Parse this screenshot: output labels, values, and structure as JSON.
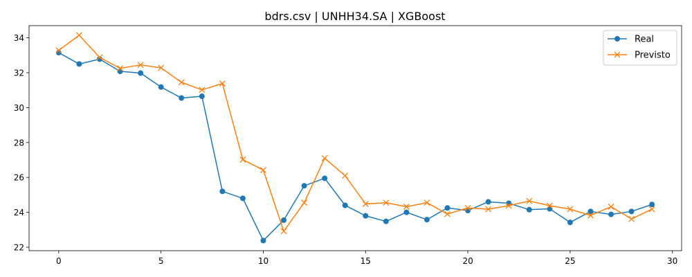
{
  "chart_data": {
    "type": "line",
    "title": "bdrs.csv | UNHH34.SA | XGBoost",
    "xlabel": "",
    "ylabel": "",
    "xlim": [
      -1.45,
      30.45
    ],
    "ylim": [
      21.8,
      34.7
    ],
    "xticks": [
      0,
      5,
      10,
      15,
      20,
      25,
      30
    ],
    "yticks": [
      22,
      24,
      26,
      28,
      30,
      32,
      34
    ],
    "grid": false,
    "legend_position": "top-right",
    "x": [
      0,
      1,
      2,
      3,
      4,
      5,
      6,
      7,
      8,
      9,
      10,
      11,
      12,
      13,
      14,
      15,
      16,
      17,
      18,
      19,
      20,
      21,
      22,
      23,
      24,
      25,
      26,
      27,
      28,
      29
    ],
    "series": [
      {
        "name": "Real",
        "color": "#1f77b4",
        "marker": "circle",
        "values": [
          33.15,
          32.5,
          32.78,
          32.08,
          31.98,
          31.18,
          30.55,
          30.65,
          25.2,
          24.8,
          22.38,
          23.55,
          25.52,
          25.95,
          24.4,
          23.8,
          23.48,
          24.0,
          23.58,
          24.25,
          24.1,
          24.6,
          24.52,
          24.15,
          24.2,
          23.42,
          24.05,
          23.88,
          24.05,
          24.45
        ]
      },
      {
        "name": "Previsto",
        "color": "#ff7f0e",
        "marker": "x",
        "values": [
          33.28,
          34.15,
          32.88,
          32.25,
          32.45,
          32.28,
          31.45,
          31.02,
          31.38,
          27.02,
          26.42,
          22.92,
          24.55,
          27.1,
          26.1,
          24.48,
          24.55,
          24.32,
          24.55,
          23.9,
          24.25,
          24.18,
          24.38,
          24.65,
          24.38,
          24.18,
          23.82,
          24.32,
          23.62,
          24.18
        ]
      }
    ]
  }
}
